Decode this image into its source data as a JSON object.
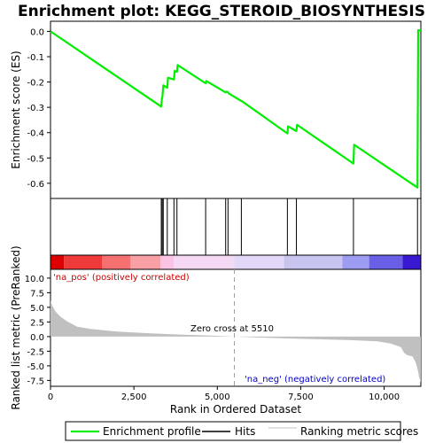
{
  "chart_data": {
    "type": "line",
    "title": "Enrichment plot: KEGG_STEROID_BIOSYNTHESIS",
    "colors": {
      "es_line": "#00ee00",
      "hits": "#000000",
      "ranking_fill": "#c0c0c0",
      "zero_cross_line": "#a0a0a0",
      "pos_label": "#cc0000",
      "neg_label": "#0000cc"
    },
    "x_range": [
      0,
      11100
    ],
    "x_ticks": [
      0,
      2500,
      5000,
      7500,
      10000
    ],
    "x_tick_labels": [
      "0",
      "2,500",
      "5,000",
      "7,500",
      "10,000"
    ],
    "xlabel": "Rank in Ordered Dataset",
    "enrichment_panel": {
      "ylabel": "Enrichment score (ES)",
      "ylim": [
        -0.66,
        0.04
      ],
      "y_ticks": [
        0.0,
        -0.1,
        -0.2,
        -0.3,
        -0.4,
        -0.5,
        -0.6
      ],
      "y_tick_labels": [
        "0.0",
        "-0.1",
        "-0.2",
        "-0.3",
        "-0.4",
        "-0.5",
        "-0.6"
      ],
      "series": [
        {
          "name": "Enrichment profile",
          "x": [
            0,
            3320,
            3340,
            3350,
            3380,
            3500,
            3520,
            3700,
            3720,
            3790,
            3810,
            4650,
            4670,
            5250,
            5270,
            5320,
            5340,
            5720,
            5740,
            7100,
            7120,
            7370,
            7390,
            9080,
            9100,
            11000,
            11020,
            11100
          ],
          "y": [
            0.0,
            -0.297,
            -0.262,
            -0.263,
            -0.213,
            -0.223,
            -0.183,
            -0.19,
            -0.156,
            -0.16,
            -0.133,
            -0.205,
            -0.196,
            -0.241,
            -0.238,
            -0.24,
            -0.245,
            -0.275,
            -0.276,
            -0.403,
            -0.375,
            -0.394,
            -0.369,
            -0.522,
            -0.448,
            -0.617,
            0.005,
            0.003
          ]
        }
      ]
    },
    "hits_panel": {
      "hit_ranks": [
        3320,
        3350,
        3380,
        3500,
        3700,
        3790,
        4650,
        5250,
        5320,
        5720,
        7100,
        7370,
        9080,
        11000
      ]
    },
    "ranking_panel": {
      "ylabel": "Ranked list metric (PreRanked)",
      "ylim": [
        -8.5,
        11.5
      ],
      "y_ticks": [
        10.0,
        7.5,
        5.0,
        2.5,
        0.0,
        -2.5,
        -5.0,
        -7.5
      ],
      "y_tick_labels": [
        "10.0",
        "7.5",
        "5.0",
        "2.5",
        "0.0",
        "-2.5",
        "-5.0",
        "-7.5"
      ],
      "x": [
        0,
        50,
        150,
        300,
        500,
        800,
        1200,
        2000,
        3000,
        4000,
        5000,
        5510,
        6000,
        7000,
        8000,
        9000,
        9800,
        10200,
        10500,
        10600,
        10700,
        10850,
        10950,
        11020,
        11050,
        11100
      ],
      "values": [
        6.2,
        5.3,
        4.3,
        3.4,
        2.6,
        1.7,
        1.3,
        0.85,
        0.55,
        0.32,
        0.13,
        0.0,
        -0.1,
        -0.3,
        -0.45,
        -0.6,
        -0.8,
        -1.2,
        -1.8,
        -2.8,
        -3.2,
        -3.4,
        -4.5,
        -6.0,
        -7.0,
        -7.8
      ],
      "zero_cross_rank": 5510,
      "zero_cross_label": "Zero cross at 5510",
      "pos_label": "'na_pos' (positively correlated)",
      "neg_label": "'na_neg' (negatively correlated)",
      "heatmap_colors": [
        "#dd0000",
        "#ee3a3a",
        "#f57070",
        "#f9a0a6",
        "#fbc4e6",
        "#f4d8f4",
        "#e2d8f8",
        "#c8c4f0",
        "#9c9cf0",
        "#6a60e8",
        "#3818d0"
      ],
      "heatmap_bounds": [
        0,
        400,
        1550,
        2400,
        3300,
        3700,
        5500,
        7000,
        8750,
        9550,
        10550,
        11100
      ]
    },
    "legend": {
      "placement": "bottom",
      "entries": [
        "Enrichment profile",
        "Hits",
        "Ranking metric scores"
      ]
    }
  }
}
